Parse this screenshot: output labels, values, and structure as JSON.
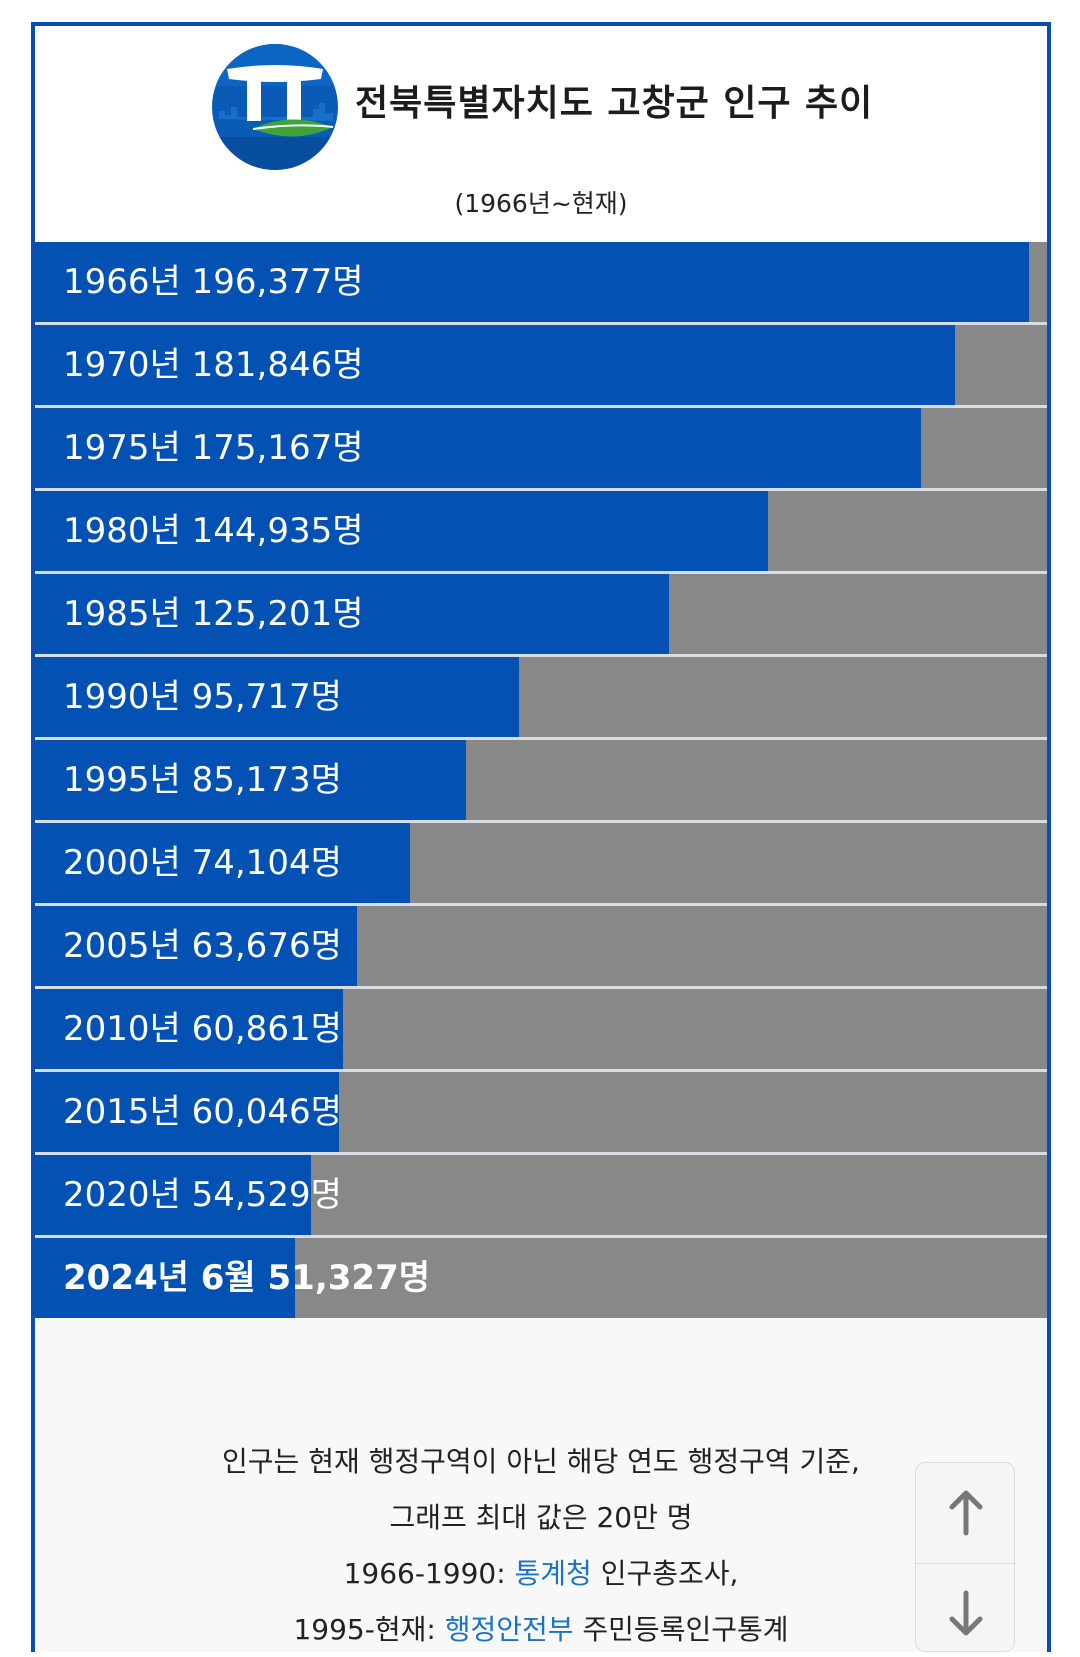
{
  "header": {
    "title": "전북특별자치도 고창군 인구 추이",
    "subtitle": "(1966년~현재)",
    "logo_icon": "dolmen-logo-icon"
  },
  "colors": {
    "bar_fill": "#0251b3",
    "bar_background": "#888888",
    "frame_border": "#0a4db3",
    "link": "#1a73c9"
  },
  "chart_data": {
    "type": "bar",
    "orientation": "horizontal",
    "xlim": [
      0,
      200000
    ],
    "categories": [
      "1966년",
      "1970년",
      "1975년",
      "1980년",
      "1985년",
      "1990년",
      "1995년",
      "2000년",
      "2005년",
      "2010년",
      "2015년",
      "2020년",
      "2024년 6월"
    ],
    "values": [
      196377,
      181846,
      175167,
      144935,
      125201,
      95717,
      85173,
      74104,
      63676,
      60861,
      60046,
      54529,
      51327
    ],
    "labels": [
      "1966년 196,377명",
      "1970년 181,846명",
      "1975년 175,167명",
      "1980년 144,935명",
      "1985년 125,201명",
      "1990년 95,717명",
      "1995년 85,173명",
      "2000년 74,104명",
      "2005년 63,676명",
      "2010년 60,861명",
      "2015년 60,046명",
      "2020년 54,529명",
      "2024년 6월 51,327명"
    ],
    "highlight_last": true
  },
  "notes": {
    "line1": "인구는 현재 행정구역이 아닌 해당 연도 행정구역 기준,",
    "line2": "그래프 최대 값은 20만 명",
    "line3_prefix": "1966-1990: ",
    "line3_link": "통계청",
    "line3_suffix": " 인구총조사,",
    "line4_prefix": "1995-현재: ",
    "line4_link": "행정안전부",
    "line4_suffix": " 주민등록인구통계"
  },
  "scroll": {
    "up_icon": "arrow-up-icon",
    "down_icon": "arrow-down-icon"
  }
}
